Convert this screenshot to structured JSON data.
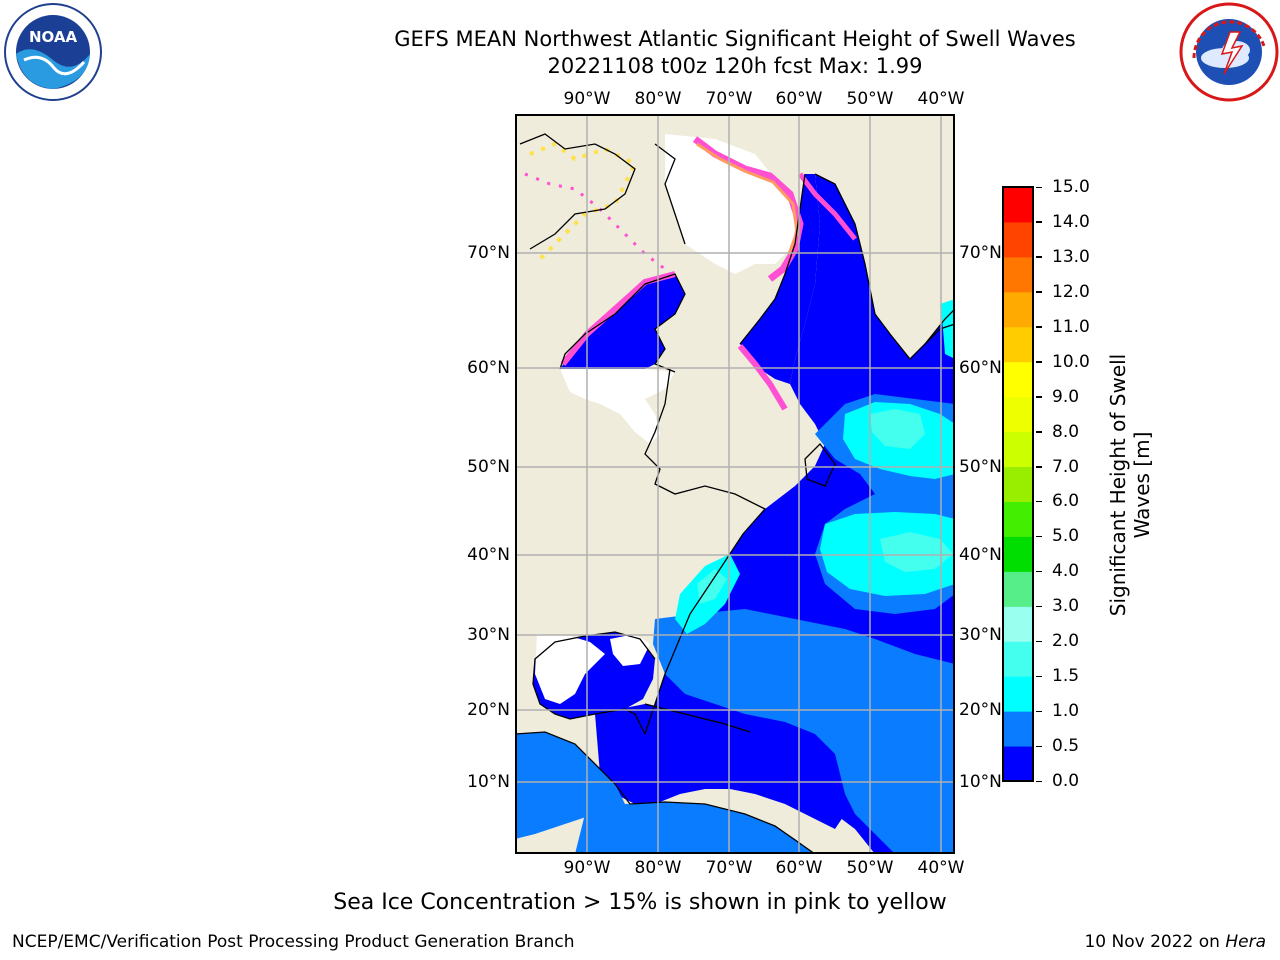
{
  "title": {
    "line1": "GEFS MEAN Northwest Atlantic Significant Height of Swell Waves",
    "line2": "20221108 t00z 120h fcst   Max: 1.99"
  },
  "logos": {
    "left": {
      "name": "noaa-logo",
      "text": "NOAA",
      "ring_text": "NATIONAL OCEANIC AND ATMOSPHERIC ADMINISTRATION · U.S. DEPARTMENT OF COMMERCE"
    },
    "right": {
      "name": "national-weather-service-logo",
      "ring_text": "NATIONAL WEATHER SERVICE"
    }
  },
  "map": {
    "lon_labels": [
      "90°W",
      "80°W",
      "70°W",
      "60°W",
      "50°W",
      "40°W"
    ],
    "lat_labels": [
      "70°N",
      "60°N",
      "50°N",
      "40°N",
      "30°N",
      "20°N",
      "10°N"
    ],
    "colors": {
      "land": "#efecdc",
      "ice_free_white": "#ffffff",
      "ice_pink": "#ff4fd2",
      "ice_yellow": "#ffe14a",
      "grid": "#b0b0b0"
    }
  },
  "colorbar": {
    "ticks": [
      "15.0",
      "14.0",
      "13.0",
      "12.0",
      "11.0",
      "10.0",
      "9.0",
      "8.0",
      "7.0",
      "6.0",
      "5.0",
      "4.0",
      "3.0",
      "2.0",
      "1.5",
      "1.0",
      "0.5",
      "0.0"
    ],
    "colors_bottom_to_top": [
      "#0000ff",
      "#0a7cff",
      "#00ffff",
      "#44ffee",
      "#99ffee",
      "#55ee88",
      "#00dd00",
      "#44ee00",
      "#99ee00",
      "#ccff00",
      "#eeff00",
      "#ffff00",
      "#ffcc00",
      "#ffaa00",
      "#ff7700",
      "#ff4400",
      "#ff0000"
    ],
    "label_line1": "Significant Height of Swell",
    "label_line2": "Waves [m]"
  },
  "caption": "Sea Ice Concentration > 15% is shown in pink to yellow",
  "footer": {
    "left": "NCEP/EMC/Verification Post Processing Product Generation Branch",
    "right_prefix": "10 Nov 2022 on ",
    "right_host": "Hera"
  }
}
